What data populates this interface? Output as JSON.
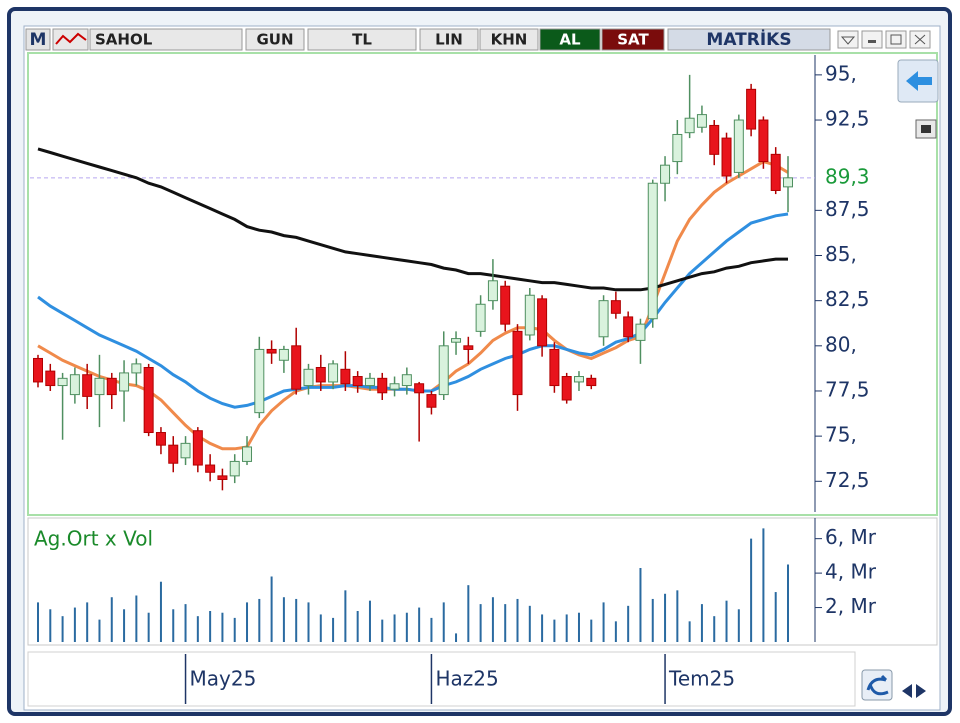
{
  "toolbar": {
    "logo": "M",
    "symbol": "SAHOL",
    "period": "GUN",
    "currency": "TL",
    "scale": "LIN",
    "style": "KHN",
    "buy": "AL",
    "sell": "SAT",
    "brand": "MATRİKS"
  },
  "chart_data": {
    "type": "candlestick",
    "categories": [
      null,
      null,
      null,
      null,
      null,
      null,
      null,
      null,
      null,
      null,
      null,
      null,
      "May25",
      null,
      null,
      null,
      null,
      null,
      null,
      null,
      null,
      null,
      null,
      null,
      null,
      null,
      null,
      null,
      null,
      null,
      null,
      null,
      "Haz25",
      null,
      null,
      null,
      null,
      null,
      null,
      null,
      null,
      null,
      null,
      null,
      null,
      null,
      null,
      null,
      null,
      null,
      null,
      "Tem25",
      null,
      null,
      null,
      null,
      null,
      null,
      null,
      null,
      null,
      null
    ],
    "open": [
      79.3,
      78.6,
      77.8,
      77.3,
      78.4,
      77.3,
      78.2,
      77.5,
      78.5,
      78.8,
      75.2,
      74.5,
      73.8,
      75.3,
      73.4,
      72.8,
      72.8,
      73.6,
      76.3,
      79.8,
      79.2,
      80.0,
      77.8,
      78.8,
      78.0,
      78.7,
      78.3,
      77.8,
      78.2,
      77.6,
      77.8,
      77.9,
      77.3,
      77.3,
      80.2,
      80.0,
      80.8,
      82.5,
      83.3,
      80.8,
      80.6,
      82.6,
      79.8,
      78.3,
      78.0,
      78.2,
      80.5,
      82.5,
      81.6,
      80.3,
      81.5,
      89.0,
      90.2,
      91.8,
      92.1,
      92.2,
      91.5,
      89.6,
      94.2,
      92.5,
      90.6,
      88.8
    ],
    "high": [
      79.5,
      79.0,
      78.5,
      78.8,
      79.0,
      79.5,
      78.5,
      79.2,
      79.3,
      79.0,
      75.5,
      75.0,
      75.0,
      75.5,
      74.0,
      73.2,
      74.0,
      75.0,
      80.5,
      80.3,
      80.0,
      81.0,
      79.0,
      79.5,
      79.2,
      79.7,
      78.6,
      78.5,
      78.5,
      78.3,
      78.8,
      78.0,
      77.5,
      80.8,
      80.8,
      80.5,
      82.8,
      84.8,
      83.6,
      81.2,
      83.2,
      82.8,
      80.2,
      78.5,
      78.6,
      78.4,
      82.8,
      83.0,
      81.9,
      81.5,
      89.2,
      90.5,
      92.5,
      95.0,
      93.3,
      92.5,
      91.8,
      92.8,
      94.5,
      92.7,
      91.0,
      90.5
    ],
    "low": [
      77.7,
      77.5,
      74.8,
      76.8,
      76.5,
      75.5,
      76.5,
      75.8,
      77.8,
      75.0,
      74.0,
      73.0,
      73.4,
      73.0,
      72.5,
      72.0,
      72.4,
      73.4,
      76.0,
      79.0,
      78.5,
      77.3,
      77.3,
      77.5,
      77.6,
      77.5,
      77.4,
      77.5,
      77.0,
      77.2,
      77.3,
      74.7,
      76.2,
      77.0,
      79.5,
      79.0,
      80.5,
      82.0,
      80.8,
      76.4,
      80.3,
      79.4,
      77.4,
      76.8,
      77.5,
      77.6,
      80.0,
      81.5,
      80.2,
      79.0,
      81.0,
      88.0,
      89.5,
      91.5,
      91.8,
      90.0,
      89.0,
      89.3,
      91.6,
      89.8,
      88.4,
      87.4
    ],
    "close": [
      78.0,
      77.8,
      78.2,
      78.4,
      77.2,
      78.2,
      77.3,
      78.5,
      79.0,
      75.2,
      74.5,
      73.5,
      74.6,
      73.4,
      73.0,
      72.6,
      73.6,
      74.4,
      79.8,
      79.6,
      79.8,
      77.6,
      78.7,
      78.0,
      79.0,
      77.9,
      77.8,
      78.2,
      77.4,
      77.9,
      78.4,
      77.4,
      76.6,
      80.0,
      80.4,
      79.8,
      82.3,
      83.6,
      81.2,
      77.3,
      82.8,
      80.0,
      77.8,
      77.0,
      78.3,
      77.8,
      82.5,
      81.8,
      80.5,
      81.2,
      89.0,
      90.0,
      91.7,
      92.6,
      92.8,
      90.6,
      89.4,
      92.5,
      92.0,
      90.2,
      88.6,
      89.3
    ],
    "up_color": "#d9f2dd",
    "up_edge": "#4f8f60",
    "down_color": "#e8141c",
    "down_edge": "#b00000",
    "series": [
      {
        "color": "#f08a4b",
        "values": [
          80.0,
          79.6,
          79.2,
          78.9,
          78.6,
          78.3,
          78.1,
          77.9,
          77.8,
          77.5,
          77.0,
          76.3,
          75.6,
          75.0,
          74.6,
          74.3,
          74.3,
          74.4,
          75.6,
          76.4,
          77.0,
          77.5,
          77.7,
          77.8,
          77.8,
          77.8,
          77.7,
          77.6,
          77.6,
          77.6,
          77.6,
          77.5,
          77.5,
          78.0,
          78.6,
          79.0,
          79.6,
          80.3,
          80.7,
          81.0,
          81.0,
          80.9,
          80.3,
          79.8,
          79.5,
          79.3,
          79.6,
          79.9,
          80.3,
          80.5,
          82.2,
          84.0,
          85.8,
          87.0,
          87.8,
          88.5,
          89.0,
          89.4,
          89.8,
          90.2,
          90.0,
          89.6
        ]
      },
      {
        "color": "#2f8fe0",
        "values": [
          82.7,
          82.2,
          81.8,
          81.4,
          81.0,
          80.6,
          80.3,
          80.0,
          79.7,
          79.3,
          78.9,
          78.4,
          78.0,
          77.5,
          77.1,
          76.8,
          76.6,
          76.7,
          76.9,
          77.2,
          77.5,
          77.6,
          77.7,
          77.7,
          77.7,
          77.8,
          77.8,
          77.7,
          77.7,
          77.6,
          77.6,
          77.5,
          77.5,
          77.8,
          78.0,
          78.3,
          78.7,
          79.0,
          79.3,
          79.5,
          79.8,
          80.0,
          80.0,
          79.8,
          79.6,
          79.5,
          79.8,
          80.2,
          80.4,
          80.7,
          81.5,
          82.4,
          83.2,
          84.0,
          84.6,
          85.2,
          85.8,
          86.3,
          86.8,
          87.0,
          87.2,
          87.3
        ]
      },
      {
        "color": "#111111",
        "values": [
          90.9,
          90.7,
          90.5,
          90.3,
          90.1,
          89.9,
          89.7,
          89.5,
          89.3,
          89.0,
          88.8,
          88.5,
          88.2,
          87.9,
          87.6,
          87.3,
          87.0,
          86.6,
          86.4,
          86.3,
          86.1,
          86.0,
          85.8,
          85.6,
          85.4,
          85.2,
          85.1,
          85.0,
          84.9,
          84.8,
          84.7,
          84.6,
          84.5,
          84.3,
          84.2,
          84.0,
          84.0,
          83.9,
          83.8,
          83.7,
          83.6,
          83.5,
          83.5,
          83.4,
          83.3,
          83.2,
          83.2,
          83.1,
          83.1,
          83.1,
          83.2,
          83.4,
          83.6,
          83.8,
          84.0,
          84.1,
          84.3,
          84.4,
          84.6,
          84.7,
          84.8,
          84.8
        ]
      },
      {
        "name": "Ag.Ort x Vol",
        "axis": "y2",
        "color": "#2a6aa0",
        "values": [
          2.3,
          1.9,
          1.5,
          2.0,
          2.3,
          1.3,
          2.6,
          1.9,
          2.7,
          1.7,
          3.5,
          1.9,
          2.2,
          1.5,
          1.8,
          1.7,
          1.4,
          2.3,
          2.5,
          3.8,
          2.6,
          2.5,
          2.3,
          1.6,
          1.4,
          3.0,
          1.8,
          2.4,
          1.3,
          1.6,
          1.7,
          2.0,
          1.4,
          2.3,
          0.5,
          3.3,
          2.2,
          2.6,
          2.2,
          2.5,
          2.1,
          1.6,
          1.3,
          1.6,
          1.7,
          1.3,
          2.3,
          1.2,
          2.1,
          4.3,
          2.5,
          2.8,
          3.0,
          1.2,
          2.2,
          1.5,
          2.4,
          1.9,
          6.0,
          6.6,
          2.9,
          4.5
        ]
      }
    ],
    "last_price": {
      "value": 89.3,
      "label": "89,3"
    },
    "ylim": [
      70.8,
      96.1
    ],
    "yticks": [
      {
        "value": 72.5,
        "label": "72,5"
      },
      {
        "value": 75,
        "label": "75,"
      },
      {
        "value": 77.5,
        "label": "77,5"
      },
      {
        "value": 80,
        "label": "80,"
      },
      {
        "value": 82.5,
        "label": "82,5"
      },
      {
        "value": 85,
        "label": "85,"
      },
      {
        "value": 87.5,
        "label": "87,5"
      },
      {
        "value": 92.5,
        "label": "92,5"
      },
      {
        "value": 95,
        "label": "95,"
      }
    ],
    "y2lim": [
      0,
      7.2
    ],
    "y2ticks": [
      {
        "value": 2,
        "label": "2, Mr"
      },
      {
        "value": 4,
        "label": "4, Mr"
      },
      {
        "value": 6,
        "label": "6, Mr"
      }
    ]
  }
}
